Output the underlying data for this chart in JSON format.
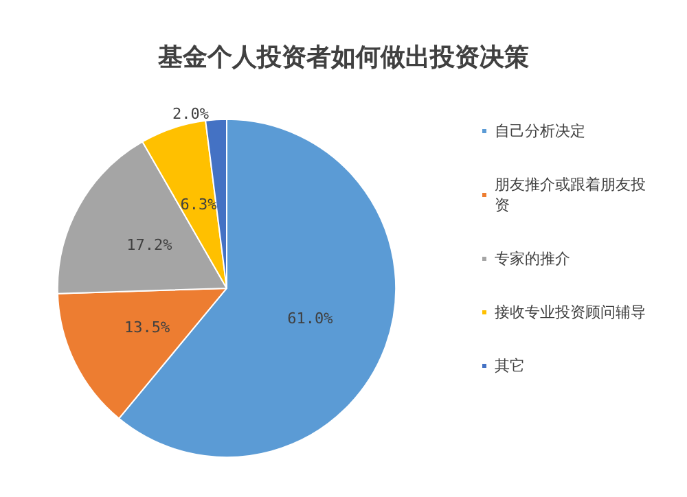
{
  "chart_data": {
    "type": "pie",
    "title": "基金个人投资者如何做出投资决策",
    "categories": [
      "自己分析决定",
      "朋友推介或跟着朋友投资",
      "专家的推介",
      "接收专业投资顾问辅导",
      "其它"
    ],
    "values": [
      61.0,
      13.5,
      17.2,
      6.3,
      2.0
    ],
    "colors": [
      "#5b9bd5",
      "#ed7d31",
      "#a5a5a5",
      "#ffc000",
      "#4472c4"
    ],
    "value_labels": [
      "61.0%",
      "13.5%",
      "17.2%",
      "6.3%",
      "2.0%"
    ],
    "legend": "right"
  }
}
